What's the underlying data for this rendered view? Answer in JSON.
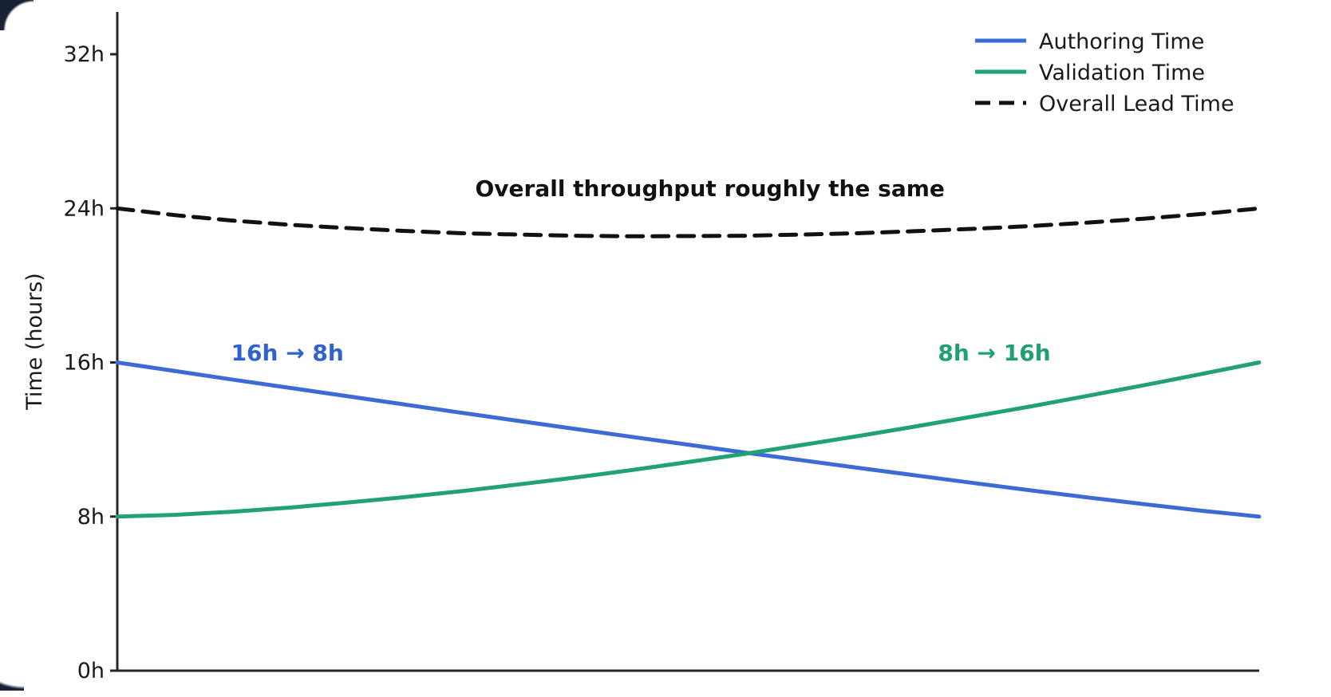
{
  "chart_data": {
    "type": "line",
    "title": "",
    "xlabel": "",
    "ylabel": "Time (hours)",
    "grid": false,
    "legend_position": "top-right",
    "ylim": [
      0,
      33
    ],
    "yticks": [
      {
        "label": "0h",
        "value": 0
      },
      {
        "label": "8h",
        "value": 8
      },
      {
        "label": "16h",
        "value": 16
      },
      {
        "label": "24h",
        "value": 24
      },
      {
        "label": "32h",
        "value": 32
      }
    ],
    "x": [
      0,
      0.05,
      0.1,
      0.15,
      0.2,
      0.25,
      0.3,
      0.35,
      0.4,
      0.45,
      0.5,
      0.55,
      0.6,
      0.65,
      0.7,
      0.75,
      0.8,
      0.85,
      0.9,
      0.95,
      1
    ],
    "series": [
      {
        "name": "Authoring Time",
        "color": "#3d6bd6",
        "style": "solid",
        "values": [
          16.0,
          15.56,
          15.12,
          14.69,
          14.26,
          13.83,
          13.4,
          12.98,
          12.56,
          12.14,
          11.73,
          11.32,
          10.92,
          10.52,
          10.13,
          9.74,
          9.36,
          8.99,
          8.64,
          8.3,
          8.0
        ]
      },
      {
        "name": "Validation Time",
        "color": "#22a173",
        "style": "solid",
        "values": [
          8.0,
          8.09,
          8.25,
          8.46,
          8.72,
          9.0,
          9.31,
          9.66,
          10.02,
          10.41,
          10.83,
          11.26,
          11.72,
          12.19,
          12.69,
          13.2,
          13.72,
          14.27,
          14.83,
          15.41,
          16.0
        ]
      },
      {
        "name": "Overall Lead Time",
        "color": "#111111",
        "style": "dashed",
        "values": [
          24.0,
          23.65,
          23.37,
          23.15,
          22.98,
          22.83,
          22.71,
          22.64,
          22.58,
          22.55,
          22.56,
          22.58,
          22.64,
          22.71,
          22.82,
          22.94,
          23.08,
          23.26,
          23.47,
          23.71,
          24.0
        ]
      }
    ],
    "annotations": [
      {
        "id": "throughput-note",
        "text": "Overall throughput roughly the same",
        "color": "#111111",
        "t": 0.519,
        "hours": 24.63
      },
      {
        "id": "authoring-note",
        "text": "16h → 8h",
        "color": "#2f62cf",
        "t": 0.149,
        "hours": 16.1
      },
      {
        "id": "validation-note",
        "text": "8h → 16h",
        "color": "#1fa06e",
        "t": 0.768,
        "hours": 16.1
      }
    ]
  },
  "colors": {
    "spine": "#262626",
    "tick_label": "#1a1a1a",
    "legend_text": "#1a1a1a",
    "background": "#ffffff"
  }
}
